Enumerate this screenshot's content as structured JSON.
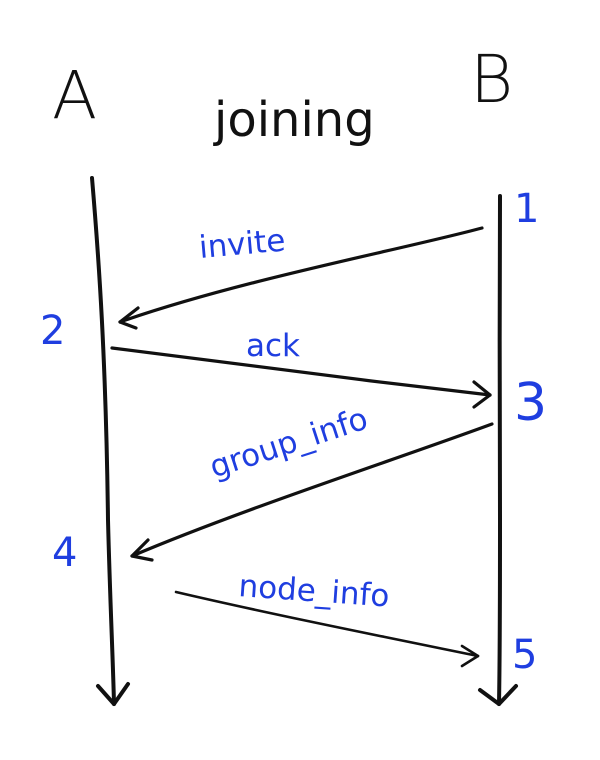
{
  "diagram": {
    "title": "joining",
    "participants": [
      "A",
      "B"
    ],
    "messages": [
      {
        "label": "invite",
        "from": "B",
        "to": "A",
        "from_step": "1",
        "to_step": "2"
      },
      {
        "label": "ack",
        "from": "A",
        "to": "B",
        "from_step": "2",
        "to_step": "3"
      },
      {
        "label": "group_info",
        "from": "B",
        "to": "A",
        "from_step": "3",
        "to_step": "4"
      },
      {
        "label": "node_info",
        "from": "A",
        "to": "B",
        "from_step": "4",
        "to_step": "5"
      }
    ],
    "steps": [
      "1",
      "2",
      "3",
      "4",
      "5"
    ],
    "colors": {
      "lifelines": "#111111",
      "messages": "#1f3ee0",
      "arrows": "#111111"
    }
  }
}
